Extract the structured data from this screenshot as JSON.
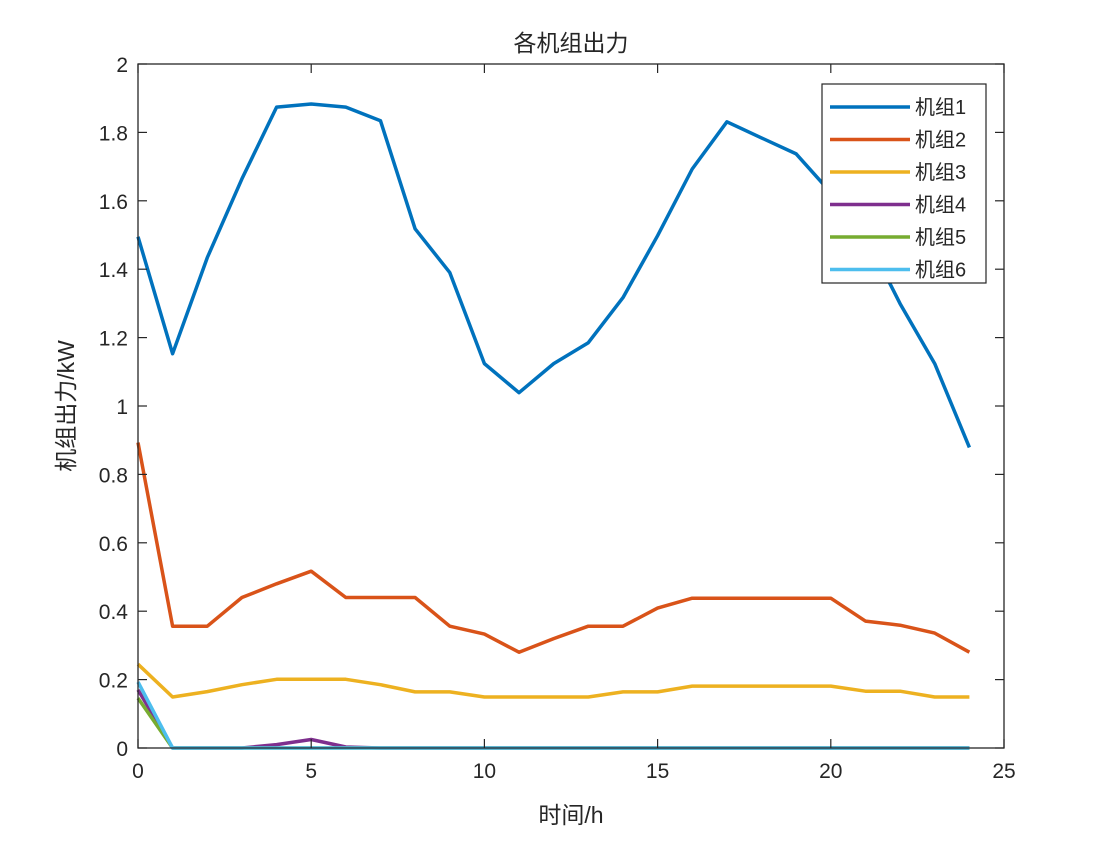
{
  "chart_data": {
    "type": "line",
    "title": "各机组出力",
    "xlabel": "时间/h",
    "ylabel": "机组出力/kW",
    "xlim": [
      0,
      25
    ],
    "ylim": [
      0,
      2
    ],
    "xticks": [
      0,
      5,
      10,
      15,
      20,
      25
    ],
    "xtick_labels": [
      "0",
      "5",
      "10",
      "15",
      "20",
      "25"
    ],
    "yticks": [
      0,
      0.2,
      0.4,
      0.6,
      0.8,
      1,
      1.2,
      1.4,
      1.6,
      1.8,
      2
    ],
    "ytick_labels": [
      "0",
      "0.2",
      "0.4",
      "0.6",
      "0.8",
      "1",
      "1.2",
      "1.4",
      "1.6",
      "1.8",
      "2"
    ],
    "grid": false,
    "legend_position": "upper right",
    "x": [
      0,
      1,
      2,
      3,
      4,
      5,
      6,
      7,
      8,
      9,
      10,
      11,
      12,
      13,
      14,
      15,
      16,
      17,
      18,
      19,
      20,
      21,
      22,
      23,
      24
    ],
    "series": [
      {
        "name": "机组1",
        "color": "#0072BD",
        "values": [
          1.495,
          1.153,
          1.434,
          1.664,
          1.874,
          1.883,
          1.874,
          1.834,
          1.518,
          1.39,
          1.124,
          1.039,
          1.124,
          1.185,
          1.317,
          1.498,
          1.693,
          1.831,
          1.784,
          1.737,
          1.624,
          1.5,
          1.299,
          1.124,
          0.879
        ]
      },
      {
        "name": "机组2",
        "color": "#D95319",
        "values": [
          0.893,
          0.356,
          0.356,
          0.44,
          0.48,
          0.517,
          0.44,
          0.44,
          0.44,
          0.356,
          0.333,
          0.28,
          0.32,
          0.356,
          0.356,
          0.409,
          0.438,
          0.438,
          0.438,
          0.438,
          0.438,
          0.371,
          0.359,
          0.336,
          0.28
        ]
      },
      {
        "name": "机组3",
        "color": "#EDB120",
        "values": [
          0.245,
          0.149,
          0.165,
          0.185,
          0.201,
          0.201,
          0.201,
          0.185,
          0.164,
          0.164,
          0.149,
          0.149,
          0.149,
          0.149,
          0.164,
          0.164,
          0.181,
          0.181,
          0.181,
          0.181,
          0.181,
          0.166,
          0.166,
          0.149,
          0.149
        ]
      },
      {
        "name": "机组4",
        "color": "#7E2F8E",
        "values": [
          0.17,
          0,
          0,
          0,
          0.01,
          0.025,
          0.003,
          0,
          0,
          0,
          0,
          0,
          0,
          0,
          0,
          0,
          0,
          0,
          0,
          0,
          0,
          0,
          0,
          0,
          0
        ]
      },
      {
        "name": "机组5",
        "color": "#77AC30",
        "values": [
          0.146,
          0,
          0,
          0,
          0,
          0,
          0,
          0,
          0,
          0,
          0,
          0,
          0,
          0,
          0,
          0,
          0,
          0,
          0,
          0,
          0,
          0,
          0,
          0,
          0
        ]
      },
      {
        "name": "机组6",
        "color": "#4DBEEE",
        "values": [
          0.193,
          0,
          0,
          0,
          0,
          0,
          0,
          0,
          0,
          0,
          0,
          0,
          0,
          0,
          0,
          0,
          0,
          0,
          0,
          0,
          0,
          0,
          0,
          0,
          0
        ]
      }
    ]
  }
}
